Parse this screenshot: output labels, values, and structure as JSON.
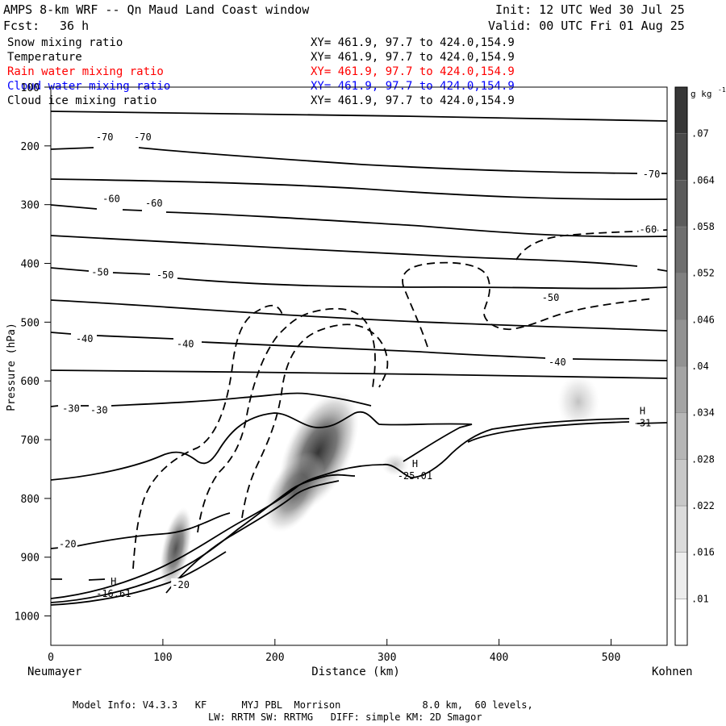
{
  "header": {
    "title": "AMPS 8-km WRF -- Qn Maud Land Coast window",
    "init": "Init: 12 UTC Wed 30 Jul 25",
    "fcst_label": "Fcst:",
    "fcst_value": "36 h",
    "valid": "Valid: 00 UTC Fri 01 Aug 25"
  },
  "legend": [
    {
      "name": "Snow mixing ratio",
      "xy": "XY= 461.9, 97.7 to 424.0,154.9",
      "color": "#000000"
    },
    {
      "name": "Temperature",
      "xy": "XY= 461.9, 97.7 to 424.0,154.9",
      "color": "#000000"
    },
    {
      "name": "Rain water mixing ratio",
      "xy": "XY= 461.9, 97.7 to 424.0,154.9",
      "color": "#ff0000"
    },
    {
      "name": "Cloud water mixing ratio",
      "xy": "XY= 461.9, 97.7 to 424.0,154.9",
      "color": "#0000ff"
    },
    {
      "name": "Cloud ice mixing ratio",
      "xy": "XY= 461.9, 97.7 to 424.0,154.9",
      "color": "#000000"
    }
  ],
  "footer": {
    "line1": "Model Info: V4.3.3   KF      MYJ PBL  Morrison              8.0 km,  60 levels,",
    "line2": "LW: RRTM SW: RRTMG   DIFF: simple KM: 2D Smagor"
  },
  "chart_data": {
    "type": "contour cross-section",
    "xlabel": "Distance (km)",
    "ylabel": "Pressure (hPa)",
    "xlim": [
      0,
      550
    ],
    "ylim": [
      1050,
      100
    ],
    "x_ticks": [
      0,
      100,
      200,
      300,
      400,
      500
    ],
    "y_ticks": [
      100,
      200,
      300,
      400,
      500,
      600,
      700,
      800,
      900,
      1000
    ],
    "x_start_label": "Neumayer",
    "x_end_label": "Kohnen",
    "colorbar_unit": "g kg",
    "colorbar_unit_exp": "-1",
    "colorbar_ticks": [
      ".01",
      ".016",
      ".022",
      ".028",
      ".034",
      ".04",
      ".046",
      ".052",
      ".058",
      ".064",
      ".07"
    ],
    "temperature_labels": [
      {
        "text": "-70",
        "x": 48,
        "p": 185
      },
      {
        "text": "-70",
        "x": 82,
        "p": 185
      },
      {
        "text": "-70",
        "x": 536,
        "p": 248
      },
      {
        "text": "-60",
        "x": 54,
        "p": 290
      },
      {
        "text": "-60",
        "x": 92,
        "p": 298
      },
      {
        "text": "-60",
        "x": 533,
        "p": 342
      },
      {
        "text": "-50",
        "x": 44,
        "p": 415
      },
      {
        "text": "-50",
        "x": 102,
        "p": 420
      },
      {
        "text": "-50",
        "x": 446,
        "p": 458
      },
      {
        "text": "-40",
        "x": 30,
        "p": 528
      },
      {
        "text": "-40",
        "x": 120,
        "p": 537
      },
      {
        "text": "-40",
        "x": 452,
        "p": 568
      },
      {
        "text": "-30",
        "x": 18,
        "p": 647
      },
      {
        "text": "-30",
        "x": 43,
        "p": 650
      },
      {
        "text": "-20",
        "x": 15,
        "p": 878
      },
      {
        "text": "-20",
        "x": 116,
        "p": 947
      }
    ],
    "highs": [
      {
        "label": "H",
        "value": "-16.61",
        "x": 56,
        "p": 955
      },
      {
        "label": "H",
        "value": "-25.01",
        "x": 325,
        "p": 755
      },
      {
        "label": "H",
        "value": "-31",
        "x": 528,
        "p": 665
      }
    ]
  }
}
